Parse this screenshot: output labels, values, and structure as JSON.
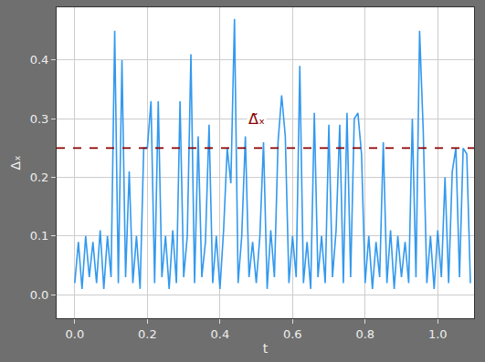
{
  "chart_data": {
    "type": "line",
    "x_label": "t",
    "y_label": "Δₓ",
    "color": "#3399ee",
    "grid": true,
    "xlim": [
      -0.05,
      1.1
    ],
    "xticks": [
      {
        "value": 0,
        "label": "0.0"
      },
      0.2,
      0.4,
      0.6,
      0.8,
      {
        "value": 1,
        "label": "1.0"
      }
    ],
    "ylim": [
      -0.04,
      0.49
    ],
    "yticks": [
      {
        "value": 0,
        "label": "0.0"
      },
      0.1,
      0.2,
      0.3,
      0.4
    ],
    "x": [
      0.0,
      0.01,
      0.02,
      0.03,
      0.04,
      0.05,
      0.06,
      0.07,
      0.08,
      0.09,
      0.1,
      0.11,
      0.12,
      0.13,
      0.14,
      0.15,
      0.16,
      0.17,
      0.18,
      0.19,
      0.2,
      0.21,
      0.22,
      0.23,
      0.24,
      0.25,
      0.26,
      0.27,
      0.28,
      0.29,
      0.3,
      0.31,
      0.32,
      0.33,
      0.34,
      0.35,
      0.36,
      0.37,
      0.38,
      0.39,
      0.4,
      0.41,
      0.42,
      0.43,
      0.44,
      0.45,
      0.46,
      0.47,
      0.48,
      0.49,
      0.5,
      0.51,
      0.52,
      0.53,
      0.54,
      0.55,
      0.56,
      0.57,
      0.58,
      0.59,
      0.6,
      0.61,
      0.62,
      0.63,
      0.64,
      0.65,
      0.66,
      0.67,
      0.68,
      0.69,
      0.7,
      0.71,
      0.72,
      0.73,
      0.74,
      0.75,
      0.76,
      0.77,
      0.78,
      0.79,
      0.8,
      0.81,
      0.82,
      0.83,
      0.84,
      0.85,
      0.86,
      0.87,
      0.88,
      0.89,
      0.9,
      0.91,
      0.92,
      0.93,
      0.94,
      0.95,
      0.96,
      0.97,
      0.98,
      0.99,
      1.0,
      1.01,
      1.02,
      1.03,
      1.04,
      1.05,
      1.06,
      1.07,
      1.08,
      1.09
    ],
    "values": [
      0.02,
      0.09,
      0.01,
      0.1,
      0.03,
      0.09,
      0.02,
      0.11,
      0.01,
      0.1,
      0.03,
      0.45,
      0.02,
      0.4,
      0.03,
      0.21,
      0.02,
      0.1,
      0.01,
      0.25,
      0.25,
      0.33,
      0.02,
      0.33,
      0.03,
      0.1,
      0.01,
      0.11,
      0.02,
      0.33,
      0.03,
      0.1,
      0.41,
      0.02,
      0.27,
      0.03,
      0.09,
      0.29,
      0.02,
      0.1,
      0.01,
      0.11,
      0.25,
      0.19,
      0.47,
      0.02,
      0.1,
      0.27,
      0.03,
      0.09,
      0.02,
      0.1,
      0.26,
      0.01,
      0.11,
      0.03,
      0.26,
      0.34,
      0.27,
      0.02,
      0.1,
      0.03,
      0.39,
      0.02,
      0.09,
      0.01,
      0.31,
      0.03,
      0.1,
      0.02,
      0.29,
      0.03,
      0.11,
      0.29,
      0.02,
      0.31,
      0.03,
      0.3,
      0.31,
      0.24,
      0.02,
      0.1,
      0.01,
      0.09,
      0.03,
      0.26,
      0.02,
      0.11,
      0.01,
      0.1,
      0.03,
      0.09,
      0.02,
      0.3,
      0.03,
      0.45,
      0.28,
      0.02,
      0.1,
      0.01,
      0.11,
      0.03,
      0.2,
      0.02,
      0.21,
      0.25,
      0.03,
      0.25,
      0.24,
      0.02
    ],
    "threshold": {
      "value": 0.25,
      "label": "Δ̃ₓ",
      "color": "#8b0000",
      "line_style": "dashed",
      "x": 0.5,
      "y": 0.3
    }
  }
}
